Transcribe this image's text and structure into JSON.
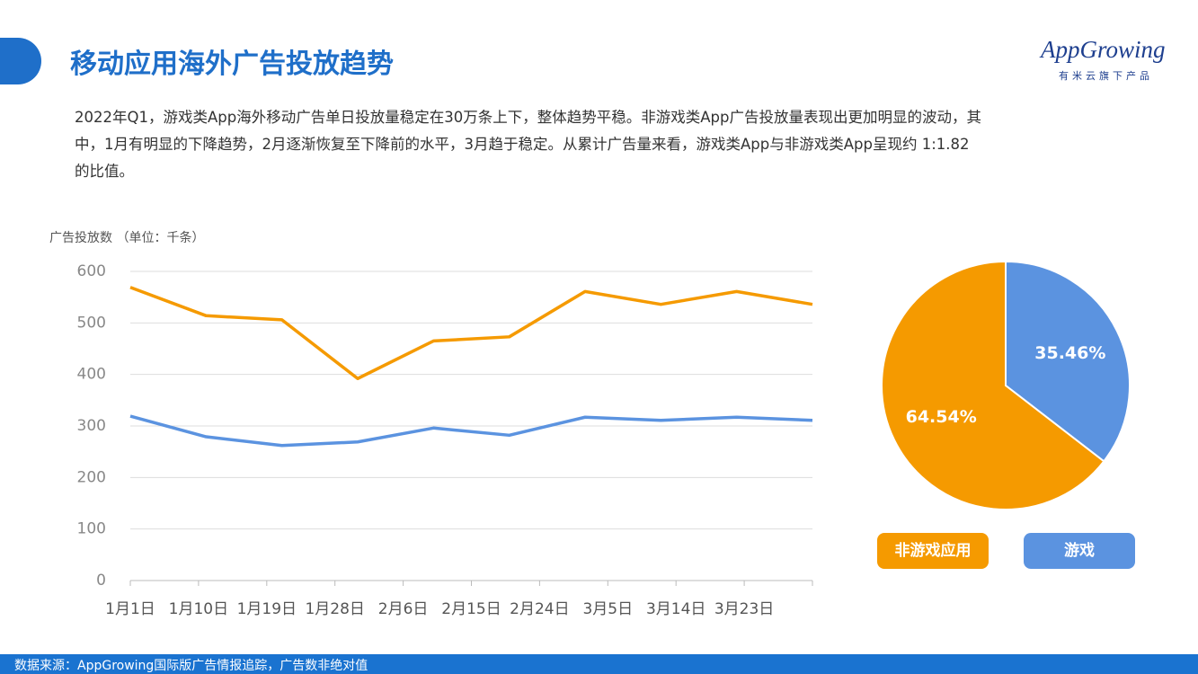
{
  "title": "移动应用海外广告投放趋势",
  "logo": {
    "name": "AppGrowing",
    "tagline": "有米云旗下产品"
  },
  "description": [
    "2022年Q1，游戏类App海外移动广告单日投放量稳定在30万条上下，整体趋势平稳。非游戏类App广告投放量表现出更加明显的波动，其",
    "中，1月有明显的下降趋势，2月逐渐恢复至下降前的水平，3月趋于稳定。从累计广告量来看，游戏类App与非游戏类App呈现约 1:1.82",
    "的比值。"
  ],
  "footer": "数据来源：AppGrowing国际版广告情报追踪，广告数非绝对值",
  "chart_data": [
    {
      "type": "line",
      "y_label": "广告投放数 （单位：千条）",
      "x": [
        0,
        10,
        20,
        30,
        40,
        50,
        60,
        70,
        80,
        90
      ],
      "xlim": [
        0,
        90
      ],
      "xticks": [
        {
          "value": 0,
          "label": "1月1日"
        },
        {
          "value": 9,
          "label": "1月10日"
        },
        {
          "value": 18,
          "label": "1月19日"
        },
        {
          "value": 27,
          "label": "1月28日"
        },
        {
          "value": 36,
          "label": "2月6日"
        },
        {
          "value": 45,
          "label": "2月15日"
        },
        {
          "value": 54,
          "label": "2月24日"
        },
        {
          "value": 63,
          "label": "3月5日"
        },
        {
          "value": 72,
          "label": "3月14日"
        },
        {
          "value": 81,
          "label": "3月23日"
        }
      ],
      "ylim": [
        0,
        600
      ],
      "yticks": [
        0,
        100,
        200,
        300,
        400,
        500,
        600
      ],
      "grid": true,
      "series": [
        {
          "name": "非游戏应用",
          "color": "#f59a00",
          "values": [
            569,
            514,
            506,
            392,
            465,
            473,
            561,
            536,
            561,
            536
          ]
        },
        {
          "name": "游戏",
          "color": "#5b93e0",
          "values": [
            319,
            279,
            262,
            269,
            296,
            282,
            317,
            311,
            317,
            311
          ]
        }
      ]
    },
    {
      "type": "pie",
      "categories": [
        "非游戏应用",
        "游戏"
      ],
      "values": [
        64.54,
        35.46
      ],
      "value_labels": [
        "64.54%",
        "35.46%"
      ],
      "colors": [
        "#f59a00",
        "#5b93e0"
      ]
    }
  ]
}
